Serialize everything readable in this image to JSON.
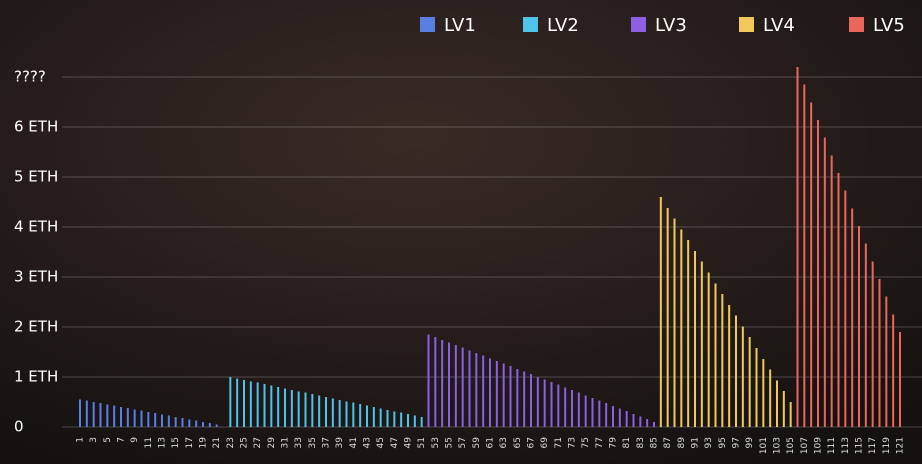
{
  "chart_data": {
    "type": "bar",
    "categories": [
      "1",
      null,
      "3",
      null,
      "5",
      null,
      "7",
      null,
      "9",
      null,
      "11",
      null,
      "13",
      null,
      "15",
      null,
      "17",
      null,
      "19",
      null,
      "21",
      null,
      "23",
      null,
      "25",
      null,
      "27",
      null,
      "29",
      null,
      "31",
      null,
      "33",
      null,
      "35",
      null,
      "37",
      null,
      "39",
      null,
      "41",
      null,
      "43",
      null,
      "45",
      null,
      "47",
      null,
      "49",
      null,
      "51",
      null,
      "53",
      null,
      "55",
      null,
      "57",
      null,
      "59",
      null,
      "61",
      null,
      "63",
      null,
      "65",
      null,
      "67",
      null,
      "69",
      null,
      "71",
      null,
      "73",
      null,
      "75",
      null,
      "77",
      null,
      "79",
      null,
      "81",
      null,
      "83",
      null,
      "85",
      null,
      "87",
      null,
      "89",
      null,
      "91",
      null,
      "93",
      null,
      "95",
      null,
      "97",
      null,
      "99",
      null,
      "101",
      null,
      "103",
      null,
      "105",
      null,
      "107",
      null,
      "109",
      null,
      "111",
      null,
      "113",
      null,
      "115",
      null,
      "117",
      null,
      "119",
      null,
      "121"
    ],
    "series": [
      {
        "name": "LV1",
        "color": "#5a7fe2",
        "values": [
          0.55,
          0.53,
          0.5,
          0.48,
          0.45,
          0.43,
          0.4,
          0.38,
          0.35,
          0.33,
          0.3,
          0.28,
          0.25,
          0.23,
          0.2,
          0.18,
          0.15,
          0.13,
          0.1,
          0.08,
          0.05,
          null,
          null,
          null,
          null,
          null,
          null,
          null,
          null,
          null,
          null,
          null,
          null,
          null,
          null,
          null,
          null,
          null,
          null,
          null,
          null,
          null,
          null,
          null,
          null,
          null,
          null,
          null,
          null,
          null,
          null,
          null,
          null,
          null,
          null,
          null,
          null,
          null,
          null,
          null,
          null,
          null,
          null,
          null,
          null,
          null,
          null,
          null,
          null,
          null,
          null,
          null,
          null,
          null,
          null,
          null,
          null,
          null,
          null,
          null,
          null,
          null,
          null,
          null,
          null,
          null,
          null,
          null,
          null,
          null,
          null,
          null,
          null,
          null,
          null,
          null,
          null,
          null,
          null,
          null,
          null,
          null,
          null,
          null,
          null,
          null,
          null,
          null,
          null,
          null,
          null,
          null,
          null,
          null,
          null,
          null,
          null,
          null,
          null,
          null,
          null
        ]
      },
      {
        "name": "LV2",
        "color": "#4fc3ea",
        "values": [
          null,
          null,
          null,
          null,
          null,
          null,
          null,
          null,
          null,
          null,
          null,
          null,
          null,
          null,
          null,
          null,
          null,
          null,
          null,
          null,
          null,
          null,
          1.0,
          0.97,
          0.94,
          0.91,
          0.89,
          0.86,
          0.83,
          0.8,
          0.77,
          0.74,
          0.71,
          0.69,
          0.66,
          0.63,
          0.6,
          0.57,
          0.54,
          0.51,
          0.49,
          0.46,
          0.43,
          0.4,
          0.37,
          0.34,
          0.31,
          0.29,
          0.26,
          0.23,
          0.2,
          null,
          null,
          null,
          null,
          null,
          null,
          null,
          null,
          null,
          null,
          null,
          null,
          null,
          null,
          null,
          null,
          null,
          null,
          null,
          null,
          null,
          null,
          null,
          null,
          null,
          null,
          null,
          null,
          null,
          null,
          null,
          null,
          null,
          null,
          null,
          null,
          null,
          null,
          null,
          null,
          null,
          null,
          null,
          null,
          null,
          null,
          null,
          null,
          null,
          null,
          null,
          null,
          null,
          null,
          null,
          null,
          null,
          null,
          null,
          null,
          null,
          null,
          null,
          null,
          null,
          null,
          null,
          null,
          null,
          null
        ]
      },
      {
        "name": "LV3",
        "color": "#8c5fe3",
        "values": [
          null,
          null,
          null,
          null,
          null,
          null,
          null,
          null,
          null,
          null,
          null,
          null,
          null,
          null,
          null,
          null,
          null,
          null,
          null,
          null,
          null,
          null,
          null,
          null,
          null,
          null,
          null,
          null,
          null,
          null,
          null,
          null,
          null,
          null,
          null,
          null,
          null,
          null,
          null,
          null,
          null,
          null,
          null,
          null,
          null,
          null,
          null,
          null,
          null,
          null,
          null,
          1.85,
          1.8,
          1.74,
          1.69,
          1.64,
          1.59,
          1.53,
          1.48,
          1.43,
          1.37,
          1.32,
          1.27,
          1.22,
          1.16,
          1.11,
          1.06,
          1.0,
          0.95,
          0.9,
          0.85,
          0.79,
          0.74,
          0.69,
          0.63,
          0.58,
          0.53,
          0.48,
          0.42,
          0.37,
          0.32,
          0.26,
          0.21,
          0.16,
          0.1,
          null,
          null,
          null,
          null,
          null,
          null,
          null,
          null,
          null,
          null,
          null,
          null,
          null,
          null,
          null,
          null,
          null,
          null,
          null,
          null,
          null,
          null,
          null,
          null,
          null,
          null,
          null,
          null,
          null,
          null,
          null,
          null,
          null,
          null,
          null,
          null
        ]
      },
      {
        "name": "LV4",
        "color": "#f1c95b",
        "values": [
          null,
          null,
          null,
          null,
          null,
          null,
          null,
          null,
          null,
          null,
          null,
          null,
          null,
          null,
          null,
          null,
          null,
          null,
          null,
          null,
          null,
          null,
          null,
          null,
          null,
          null,
          null,
          null,
          null,
          null,
          null,
          null,
          null,
          null,
          null,
          null,
          null,
          null,
          null,
          null,
          null,
          null,
          null,
          null,
          null,
          null,
          null,
          null,
          null,
          null,
          null,
          null,
          null,
          null,
          null,
          null,
          null,
          null,
          null,
          null,
          null,
          null,
          null,
          null,
          null,
          null,
          null,
          null,
          null,
          null,
          null,
          null,
          null,
          null,
          null,
          null,
          null,
          null,
          null,
          null,
          null,
          null,
          null,
          null,
          null,
          4.6,
          4.38,
          4.17,
          3.95,
          3.74,
          3.52,
          3.31,
          3.09,
          2.87,
          2.66,
          2.44,
          2.23,
          2.01,
          1.8,
          1.58,
          1.36,
          1.15,
          0.93,
          0.72,
          0.5,
          null,
          null,
          null,
          null,
          null,
          null,
          null,
          null,
          null,
          null,
          null,
          null,
          null,
          null,
          null,
          null
        ]
      },
      {
        "name": "LV5",
        "color": "#e9675d",
        "values": [
          null,
          null,
          null,
          null,
          null,
          null,
          null,
          null,
          null,
          null,
          null,
          null,
          null,
          null,
          null,
          null,
          null,
          null,
          null,
          null,
          null,
          null,
          null,
          null,
          null,
          null,
          null,
          null,
          null,
          null,
          null,
          null,
          null,
          null,
          null,
          null,
          null,
          null,
          null,
          null,
          null,
          null,
          null,
          null,
          null,
          null,
          null,
          null,
          null,
          null,
          null,
          null,
          null,
          null,
          null,
          null,
          null,
          null,
          null,
          null,
          null,
          null,
          null,
          null,
          null,
          null,
          null,
          null,
          null,
          null,
          null,
          null,
          null,
          null,
          null,
          null,
          null,
          null,
          null,
          null,
          null,
          null,
          null,
          null,
          null,
          null,
          null,
          null,
          null,
          null,
          null,
          null,
          null,
          null,
          null,
          null,
          null,
          null,
          null,
          null,
          null,
          null,
          null,
          null,
          null,
          7.2,
          6.85,
          6.49,
          6.14,
          5.79,
          5.43,
          5.08,
          4.73,
          4.37,
          4.02,
          3.67,
          3.31,
          2.96,
          2.61,
          2.25,
          1.9
        ]
      }
    ],
    "ylim": [
      0,
      7.4
    ],
    "yticks": [
      0,
      {
        "value": 1,
        "label": "1 ETH"
      },
      {
        "value": 2,
        "label": "2 ETH"
      },
      {
        "value": 3,
        "label": "3 ETH"
      },
      {
        "value": 4,
        "label": "4 ETH"
      },
      {
        "value": 5,
        "label": "5 ETH"
      },
      {
        "value": 6,
        "label": "6 ETH"
      },
      {
        "value": 7,
        "label": "????"
      }
    ],
    "grid": true,
    "legend": "top-right"
  }
}
